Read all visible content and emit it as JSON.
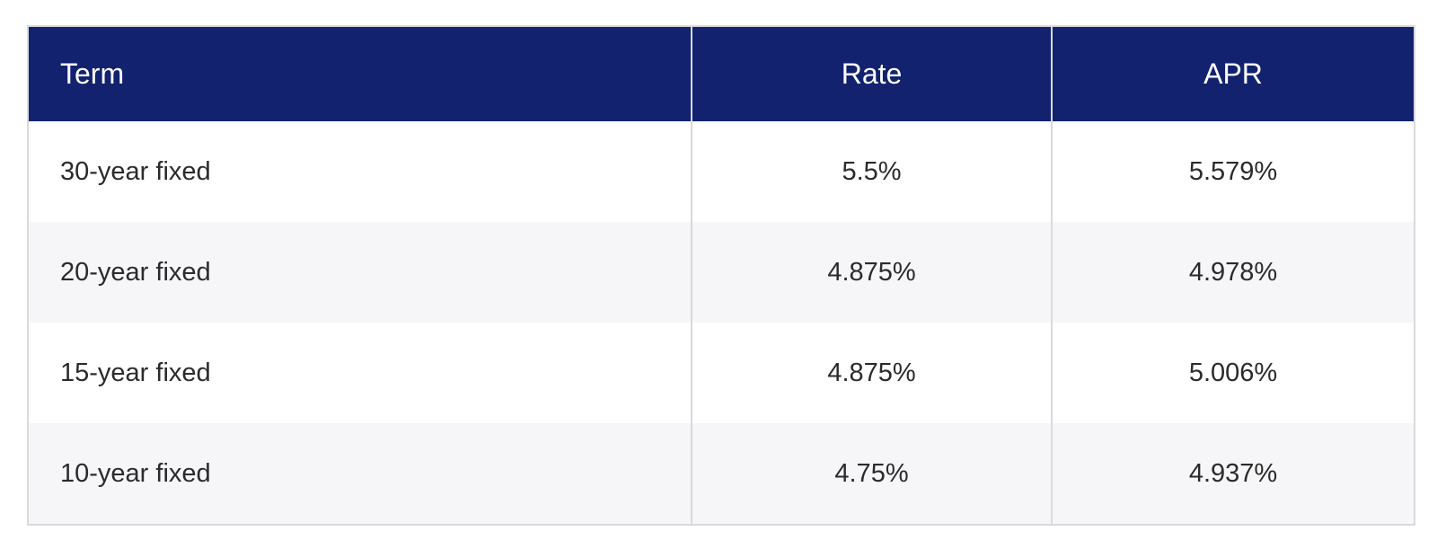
{
  "colors": {
    "header_bg": "#12226e",
    "header_text": "#ffffff",
    "row_bg": "#ffffff",
    "row_alt_bg": "#f6f6f8",
    "border": "#d9d9de",
    "body_text": "#2b2b2b",
    "page_bg": "#ffffff"
  },
  "chart_data": {
    "type": "table",
    "columns": [
      "Term",
      "Rate",
      "APR"
    ],
    "rows": [
      [
        "30-year fixed",
        "5.5%",
        "5.579%"
      ],
      [
        "20-year fixed",
        "4.875%",
        "4.978%"
      ],
      [
        "15-year fixed",
        "4.875%",
        "5.006%"
      ],
      [
        "10-year fixed",
        "4.75%",
        "4.937%"
      ]
    ],
    "categories": [
      "30-year fixed",
      "20-year fixed",
      "15-year fixed",
      "10-year fixed"
    ],
    "series": [
      {
        "name": "Rate",
        "unit": "%",
        "values": [
          5.5,
          4.875,
          4.875,
          4.75
        ]
      },
      {
        "name": "APR",
        "unit": "%",
        "values": [
          5.579,
          4.978,
          5.006,
          4.937
        ]
      }
    ],
    "layout": {
      "header_align": [
        "left",
        "center",
        "center"
      ],
      "striped": true,
      "legend": "none",
      "grid": "vertical-separators"
    }
  }
}
